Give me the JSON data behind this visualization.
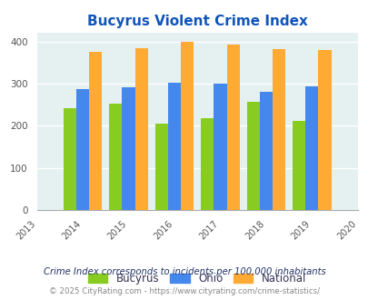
{
  "title": "Bucyrus Violent Crime Index",
  "years": [
    2014,
    2015,
    2016,
    2017,
    2018,
    2019
  ],
  "bucyrus": [
    242,
    253,
    204,
    217,
    256,
    212
  ],
  "ohio": [
    286,
    291,
    302,
    299,
    281,
    294
  ],
  "national": [
    376,
    384,
    399,
    393,
    382,
    379
  ],
  "bar_colors": {
    "bucyrus": "#88cc22",
    "ohio": "#4488ee",
    "national": "#ffaa33"
  },
  "xlim": [
    2013,
    2020
  ],
  "ylim": [
    0,
    420
  ],
  "yticks": [
    0,
    100,
    200,
    300,
    400
  ],
  "bg_color": "#e5f0f0",
  "title_color": "#1155bb",
  "title_fontsize": 11,
  "legend_labels": [
    "Bucyrus",
    "Ohio",
    "National"
  ],
  "legend_label_color": "#333355",
  "footnote1": "Crime Index corresponds to incidents per 100,000 inhabitants",
  "footnote2": "© 2025 CityRating.com - https://www.cityrating.com/crime-statistics/",
  "footnote1_color": "#223366",
  "footnote2_color": "#888888",
  "bar_width": 0.28
}
